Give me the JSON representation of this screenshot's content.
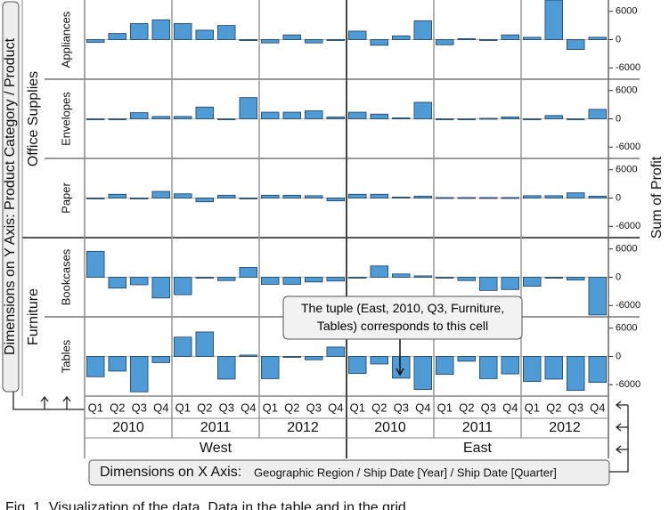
{
  "chart_data": {
    "type": "bar",
    "y_axis_label": "Dimensions on Y Axis: Product Category / Product",
    "y2_axis_label": "Sum of Profit",
    "x_axis_label_main": "Dimensions on X Axis:",
    "x_axis_label_detail": "Geographic Region / Ship Date [Year] / Ship Date [Quarter]",
    "annotation": "The tuple (East, 2010, Q3, Furniture, Tables) corresponds to this cell",
    "caption": "Fig. 1. Visualization of the data. Data in the table and in the grid",
    "regions": [
      "West",
      "East"
    ],
    "years": [
      "2010",
      "2011",
      "2012"
    ],
    "quarters": [
      "Q1",
      "Q2",
      "Q3",
      "Q4"
    ],
    "color": "#4f9bd6",
    "ylim": [
      -8400,
      8400
    ],
    "yticks": [
      6000,
      0,
      -6000
    ],
    "categories": [
      {
        "name": "Office Supplies",
        "products": [
          {
            "name": "Appliances",
            "values": [
              -600,
              1300,
              3400,
              4200,
              3400,
              2000,
              3000,
              -200,
              -700,
              1000,
              -700,
              -100,
              1800,
              -1200,
              800,
              4000,
              -1100,
              200,
              -100,
              1000,
              500,
              8400,
              -2100,
              500
            ]
          },
          {
            "name": "Envelopes",
            "values": [
              0,
              0,
              1300,
              500,
              500,
              2500,
              0,
              4500,
              1400,
              1400,
              1700,
              400,
              1400,
              1000,
              200,
              3500,
              0,
              0,
              100,
              400,
              0,
              700,
              0,
              2000
            ]
          },
          {
            "name": "Paper",
            "values": [
              0,
              800,
              0,
              1400,
              900,
              -800,
              600,
              0,
              600,
              600,
              500,
              -600,
              800,
              800,
              200,
              400,
              100,
              100,
              100,
              100,
              500,
              500,
              1100,
              400
            ]
          }
        ]
      },
      {
        "name": "Furniture",
        "products": [
          {
            "name": "Bookcases",
            "values": [
              5500,
              -2300,
              -1600,
              -4400,
              -3700,
              0,
              -700,
              2100,
              -1500,
              -1500,
              -1000,
              -800,
              0,
              2400,
              700,
              300,
              0,
              -700,
              -2800,
              -2600,
              -1900,
              -200,
              -600,
              -8000
            ]
          },
          {
            "name": "Tables",
            "values": [
              -4300,
              -3100,
              -7500,
              -1300,
              4100,
              5200,
              -4800,
              300,
              -4700,
              0,
              -700,
              2000,
              -3600,
              -1600,
              -4600,
              -7000,
              -3800,
              -1000,
              -4700,
              -3700,
              -5300,
              -4800,
              -7200,
              -5500
            ]
          }
        ]
      }
    ]
  }
}
